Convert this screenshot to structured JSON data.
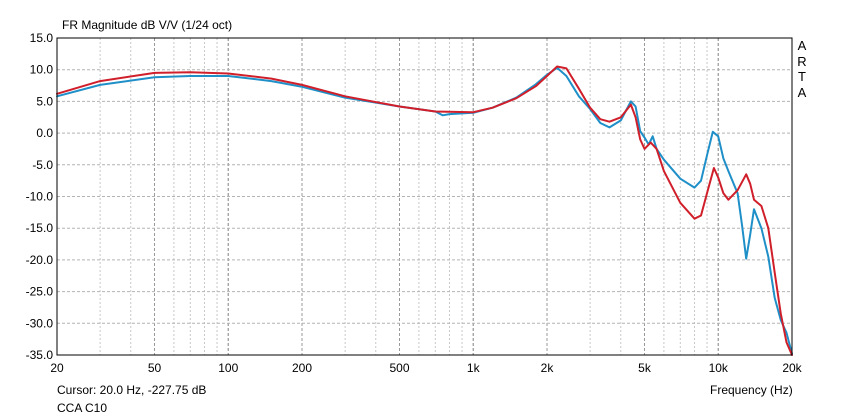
{
  "title": "FR Magnitude dB V/V (1/24 oct)",
  "brand": [
    "A",
    "R",
    "T",
    "A"
  ],
  "status": {
    "cursor": "Cursor: 20.0 Hz, -227.75 dB",
    "device": "CCA C10"
  },
  "chart_data": {
    "type": "line",
    "title": "FR Magnitude dB V/V (1/24 oct)",
    "xlabel": "Frequency (Hz)",
    "ylabel": "",
    "xscale": "log",
    "xlim": [
      20,
      20000
    ],
    "ylim": [
      -35,
      15
    ],
    "grid": true,
    "x_ticks": [
      20,
      50,
      100,
      200,
      500,
      1000,
      2000,
      5000,
      10000,
      20000
    ],
    "x_tick_labels": [
      "20",
      "50",
      "100",
      "200",
      "500",
      "1k",
      "2k",
      "5k",
      "10k",
      "20k"
    ],
    "y_ticks": [
      15,
      10,
      5,
      0,
      -5,
      -10,
      -15,
      -20,
      -25,
      -30,
      -35
    ],
    "y_tick_labels": [
      "15.0",
      "10.0",
      "5.0",
      "0.0",
      "-5.0",
      "-10.0",
      "-15.0",
      "-20.0",
      "-25.0",
      "-30.0",
      "-35.0"
    ],
    "series": [
      {
        "color": "#1f8fc8",
        "points": [
          [
            20,
            5.8
          ],
          [
            30,
            7.6
          ],
          [
            50,
            8.8
          ],
          [
            70,
            9.0
          ],
          [
            100,
            9.0
          ],
          [
            150,
            8.2
          ],
          [
            200,
            7.3
          ],
          [
            300,
            5.6
          ],
          [
            500,
            4.2
          ],
          [
            700,
            3.4
          ],
          [
            750,
            2.8
          ],
          [
            800,
            3.0
          ],
          [
            1000,
            3.2
          ],
          [
            1200,
            4.0
          ],
          [
            1500,
            5.6
          ],
          [
            1800,
            7.7
          ],
          [
            2000,
            9.2
          ],
          [
            2200,
            10.3
          ],
          [
            2400,
            9.0
          ],
          [
            2700,
            5.8
          ],
          [
            3000,
            3.8
          ],
          [
            3300,
            1.6
          ],
          [
            3600,
            0.9
          ],
          [
            4000,
            2.0
          ],
          [
            4400,
            5.0
          ],
          [
            4600,
            4.2
          ],
          [
            4800,
            0.3
          ],
          [
            5000,
            -0.7
          ],
          [
            5200,
            -1.8
          ],
          [
            5400,
            -0.5
          ],
          [
            5600,
            -2.5
          ],
          [
            6000,
            -4.2
          ],
          [
            7000,
            -7.2
          ],
          [
            8000,
            -8.6
          ],
          [
            8500,
            -7.5
          ],
          [
            9000,
            -3.5
          ],
          [
            9500,
            0.2
          ],
          [
            10000,
            -0.5
          ],
          [
            10500,
            -4.0
          ],
          [
            11000,
            -6.0
          ],
          [
            12000,
            -9.5
          ],
          [
            12500,
            -14.5
          ],
          [
            13000,
            -19.8
          ],
          [
            13500,
            -16.0
          ],
          [
            14000,
            -12.0
          ],
          [
            15000,
            -15.0
          ],
          [
            16000,
            -19.5
          ],
          [
            17000,
            -26.0
          ],
          [
            18000,
            -29.5
          ],
          [
            19000,
            -31.5
          ],
          [
            20000,
            -34.8
          ]
        ]
      },
      {
        "color": "#d01f2a",
        "points": [
          [
            20,
            6.2
          ],
          [
            30,
            8.2
          ],
          [
            50,
            9.5
          ],
          [
            70,
            9.6
          ],
          [
            100,
            9.4
          ],
          [
            150,
            8.6
          ],
          [
            200,
            7.6
          ],
          [
            300,
            5.8
          ],
          [
            500,
            4.2
          ],
          [
            700,
            3.4
          ],
          [
            1000,
            3.3
          ],
          [
            1200,
            4.0
          ],
          [
            1500,
            5.5
          ],
          [
            1800,
            7.4
          ],
          [
            2000,
            9.0
          ],
          [
            2200,
            10.5
          ],
          [
            2400,
            10.2
          ],
          [
            2700,
            7.0
          ],
          [
            3000,
            4.0
          ],
          [
            3300,
            2.2
          ],
          [
            3600,
            1.8
          ],
          [
            4000,
            2.5
          ],
          [
            4400,
            4.5
          ],
          [
            4600,
            2.5
          ],
          [
            4800,
            -1.0
          ],
          [
            5000,
            -2.5
          ],
          [
            5300,
            -1.5
          ],
          [
            5600,
            -2.5
          ],
          [
            6000,
            -6.0
          ],
          [
            7000,
            -11.0
          ],
          [
            8000,
            -13.5
          ],
          [
            8500,
            -13.0
          ],
          [
            9000,
            -9.5
          ],
          [
            9600,
            -5.5
          ],
          [
            10000,
            -7.0
          ],
          [
            10500,
            -9.5
          ],
          [
            11000,
            -10.5
          ],
          [
            12000,
            -9.0
          ],
          [
            13000,
            -6.5
          ],
          [
            13500,
            -8.0
          ],
          [
            14000,
            -10.5
          ],
          [
            15000,
            -11.5
          ],
          [
            16000,
            -15.0
          ],
          [
            17000,
            -22.0
          ],
          [
            18000,
            -28.5
          ],
          [
            19000,
            -33.0
          ],
          [
            20000,
            -35.0
          ]
        ]
      }
    ]
  }
}
